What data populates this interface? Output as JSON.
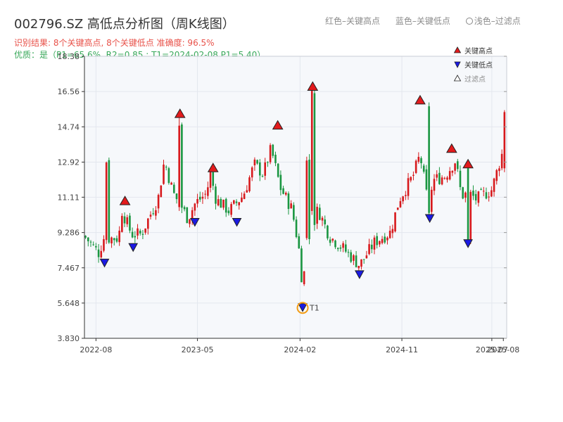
{
  "chart_data": {
    "type": "candlestick",
    "title": "002796.SZ 高低点分析图（周K线图）",
    "subtitle": "识别结果: 8个关键高点, 8个关键低点  准确度: 96.5%",
    "quality_note": "优质：是（P1=65.6%, R2=0.85 ; T1=2024-02-08 P1=5.40）",
    "top_legend": {
      "red": "红色–关键高点",
      "blue": "蓝色–关键低点",
      "light": "浅色–过滤点"
    },
    "legend": [
      {
        "name": "关键高点",
        "color": "#e31a1c"
      },
      {
        "name": "关键低点",
        "color": "#1a1ae3"
      },
      {
        "name": "过滤点",
        "color": "#ffffff"
      }
    ],
    "legend_placement": "top-right",
    "grid": true,
    "y_ticks": [
      "3.830",
      "5.648",
      "7.467",
      "9.286",
      "11.11",
      "12.92",
      "14.74",
      "16.56",
      "18.38"
    ],
    "ylim": [
      3.83,
      18.38
    ],
    "x_ticks": [
      {
        "date": "2022-08-01",
        "label": "2022-08"
      },
      {
        "date": "2023-05-01",
        "label": "2023-05"
      },
      {
        "date": "2024-02-01",
        "label": "2024-02"
      },
      {
        "date": "2024-11-01",
        "label": "2024-11"
      },
      {
        "date": "2025-07-01",
        "label": "2025-07"
      },
      {
        "date": "2025-08-01",
        "label": "2025-08"
      }
    ],
    "xlim": [
      "2022-07-01",
      "2025-08-10"
    ],
    "anchors": [
      [
        "2022-07-01",
        9.1
      ],
      [
        "2022-08-10",
        8.2
      ],
      [
        "2022-08-20",
        9.0
      ],
      [
        "2022-10-01",
        9.0
      ],
      [
        "2022-10-10",
        10.4
      ],
      [
        "2022-11-05",
        9.2
      ],
      [
        "2022-12-01",
        9.2
      ],
      [
        "2022-12-25",
        10.2
      ],
      [
        "2023-01-15",
        11.0
      ],
      [
        "2023-02-01",
        13.0
      ],
      [
        "2023-02-25",
        11.3
      ],
      [
        "2023-03-20",
        10.6
      ],
      [
        "2023-04-05",
        10.0
      ],
      [
        "2023-04-25",
        10.8
      ],
      [
        "2023-05-25",
        11.3
      ],
      [
        "2023-06-05",
        12.3
      ],
      [
        "2023-06-20",
        11.0
      ],
      [
        "2023-07-25",
        10.4
      ],
      [
        "2023-09-01",
        11.2
      ],
      [
        "2023-10-01",
        12.8
      ],
      [
        "2023-10-25",
        12.3
      ],
      [
        "2023-11-15",
        13.6
      ],
      [
        "2023-12-10",
        11.6
      ],
      [
        "2024-01-10",
        10.5
      ],
      [
        "2024-01-28",
        8.6
      ],
      [
        "2024-02-08",
        6.5
      ],
      [
        "2024-02-20",
        8.6
      ],
      [
        "2024-03-20",
        10.5
      ],
      [
        "2024-04-20",
        9.1
      ],
      [
        "2024-05-25",
        8.5
      ],
      [
        "2024-06-25",
        7.9
      ],
      [
        "2024-07-10",
        7.6
      ],
      [
        "2024-08-20",
        8.8
      ],
      [
        "2024-10-01",
        9.3
      ],
      [
        "2024-10-25",
        11.0
      ],
      [
        "2024-12-01",
        12.2
      ],
      [
        "2024-12-20",
        13.3
      ],
      [
        "2025-01-10",
        10.8
      ],
      [
        "2025-01-25",
        12.0
      ],
      [
        "2025-02-25",
        12.2
      ],
      [
        "2025-03-25",
        13.0
      ],
      [
        "2025-04-10",
        11.2
      ],
      [
        "2025-05-01",
        11.3
      ],
      [
        "2025-05-20",
        11.0
      ],
      [
        "2025-07-01",
        11.5
      ],
      [
        "2025-07-20",
        12.8
      ],
      [
        "2025-08-08",
        14.0
      ]
    ],
    "specials": [
      {
        "date": "2022-08-30",
        "open": 8.9,
        "close": 12.9,
        "high": 12.95,
        "low": 8.7
      },
      {
        "date": "2023-03-15",
        "open": 10.6,
        "close": 14.8,
        "high": 15.2,
        "low": 10.4
      },
      {
        "date": "2024-02-22",
        "open": 9.0,
        "close": 13.0,
        "high": 13.2,
        "low": 8.9
      },
      {
        "date": "2024-03-06",
        "open": 10.4,
        "close": 16.6,
        "high": 16.9,
        "low": 10.2
      },
      {
        "date": "2025-01-16",
        "open": 15.8,
        "close": 10.3,
        "high": 16.0,
        "low": 10.1
      },
      {
        "date": "2025-04-28",
        "open": 12.6,
        "close": 8.8,
        "high": 12.8,
        "low": 8.6
      },
      {
        "date": "2025-08-05",
        "open": 12.6,
        "close": 15.5,
        "high": 15.6,
        "low": 12.4
      }
    ],
    "key_highs": [
      {
        "date": "2022-10-18",
        "value": 10.9
      },
      {
        "date": "2023-03-15",
        "value": 15.4
      },
      {
        "date": "2023-06-12",
        "value": 12.6
      },
      {
        "date": "2023-12-03",
        "value": 14.8
      },
      {
        "date": "2024-03-06",
        "value": 16.8
      },
      {
        "date": "2024-12-20",
        "value": 16.1
      },
      {
        "date": "2025-03-15",
        "value": 13.6
      },
      {
        "date": "2025-04-28",
        "value": 12.8
      }
    ],
    "key_lows": [
      {
        "date": "2022-08-24",
        "value": 7.7
      },
      {
        "date": "2022-11-09",
        "value": 8.5
      },
      {
        "date": "2023-04-24",
        "value": 9.8
      },
      {
        "date": "2023-08-15",
        "value": 9.8
      },
      {
        "date": "2024-02-08",
        "value": 5.4
      },
      {
        "date": "2024-07-10",
        "value": 7.1
      },
      {
        "date": "2025-01-15",
        "value": 10.0
      },
      {
        "date": "2025-04-28",
        "value": 8.7
      }
    ],
    "t1": {
      "date": "2024-02-08",
      "value": 5.4,
      "label": "T1"
    }
  }
}
